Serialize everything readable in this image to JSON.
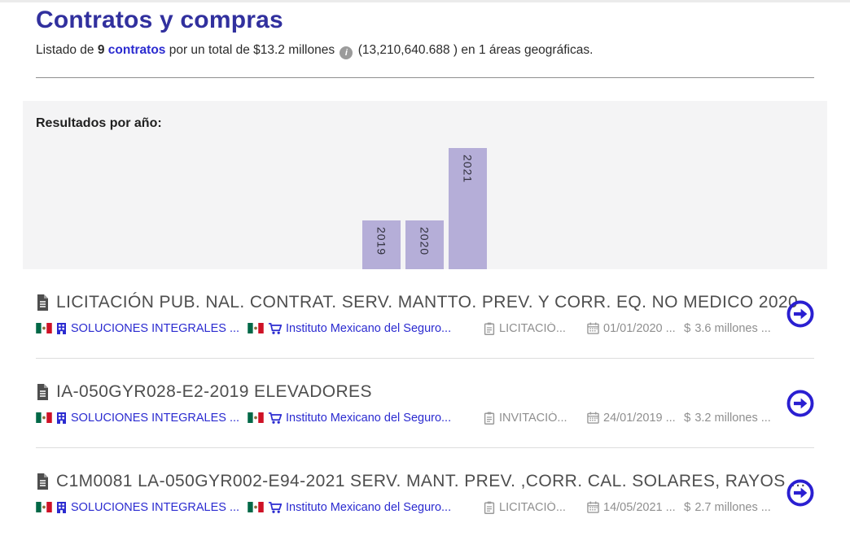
{
  "page": {
    "title": "Contratos y compras"
  },
  "summary": {
    "prefix": "Listado de",
    "count": "9",
    "contracts_link": "contratos",
    "total_text": "por un total de $13.2 millones",
    "info_glyph": "i",
    "amount_detail": "(13,210,640.688 )",
    "suffix": "en 1 áreas geográficas."
  },
  "chart_data": {
    "type": "bar",
    "title": "Resultados por año:",
    "categories": [
      "2019",
      "2020",
      "2021"
    ],
    "values": [
      2,
      2,
      5
    ],
    "ylim": [
      0,
      5
    ],
    "bar_color": "#b5aed8",
    "grid": false,
    "legend": "none",
    "note": "bar heights proportional to contracts per year, total 9"
  },
  "icons": {
    "dollar": "$"
  },
  "contracts": [
    {
      "title": "LICITACIÓN PUB. NAL. CONTRAT. SERV. MANTTO. PREV. Y CORR. EQ. NO MEDICO 2020",
      "supplier": "SOLUCIONES INTEGRALES ...",
      "buyer": "Instituto Mexicano del Seguro...",
      "type": "LICITACIÓ...",
      "date": "01/01/2020 ...",
      "amount": "3.6 millones ..."
    },
    {
      "title": "IA-050GYR028-E2-2019 ELEVADORES",
      "supplier": "SOLUCIONES INTEGRALES ...",
      "buyer": "Instituto Mexicano del Seguro...",
      "type": "INVITACIÓ...",
      "date": "24/01/2019 ...",
      "amount": "3.2 millones ..."
    },
    {
      "title": "C1M0081 LA-050GYR002-E94-2021 SERV. MANT. PREV. ,CORR. CAL. SOLARES, RAYOS ...",
      "supplier": "SOLUCIONES INTEGRALES ...",
      "buyer": "Instituto Mexicano del Seguro...",
      "type": "LICITACIÓ...",
      "date": "14/05/2021 ...",
      "amount": "2.7 millones ..."
    }
  ]
}
